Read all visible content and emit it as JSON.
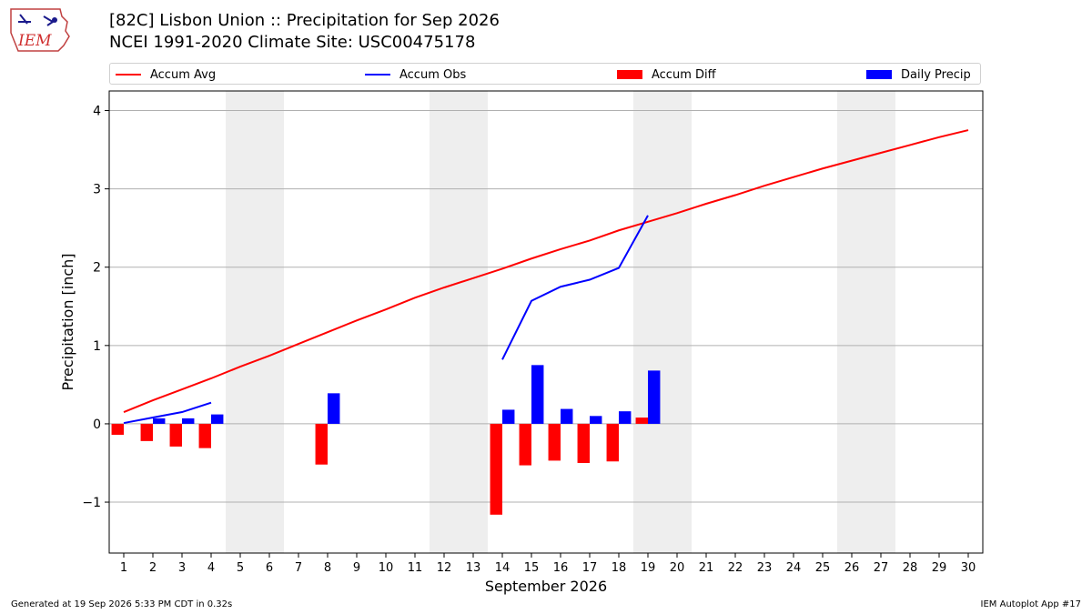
{
  "header": {
    "title_line1": "[82C] Lisbon Union :: Precipitation for Sep 2026",
    "title_line2": "NCEI 1991-2020 Climate Site: USC00475178",
    "logo_text": "IEM"
  },
  "footer": {
    "left": "Generated at 19 Sep 2026 5:33 PM CDT in 0.32s",
    "right": "IEM Autoplot App #17"
  },
  "colors": {
    "accum_avg": "#ff0000",
    "accum_obs": "#0000ff",
    "accum_diff": "#ff0000",
    "daily_precip": "#0000ff",
    "weekend_shade": "#eeeeee",
    "grid": "#b0b0b0"
  },
  "chart_data": {
    "type": "bar",
    "xlabel": "September 2026",
    "ylabel": "Precipitation [inch]",
    "xlim": [
      0.5,
      30.5
    ],
    "ylim": [
      -1.65,
      4.25
    ],
    "y_ticks": [
      -1,
      0,
      1,
      2,
      3,
      4
    ],
    "y_tick_labels": [
      "−1",
      "0",
      "1",
      "2",
      "3",
      "4"
    ],
    "x_ticks": [
      1,
      2,
      3,
      4,
      5,
      6,
      7,
      8,
      9,
      10,
      11,
      12,
      13,
      14,
      15,
      16,
      17,
      18,
      19,
      20,
      21,
      22,
      23,
      24,
      25,
      26,
      27,
      28,
      29,
      30
    ],
    "grid": "horizontal",
    "legend_placement": "top",
    "weekend_shading": [
      [
        4.5,
        6.5
      ],
      [
        11.5,
        13.5
      ],
      [
        18.5,
        20.5
      ],
      [
        25.5,
        27.5
      ]
    ],
    "legend": [
      {
        "key": "accum_avg",
        "label": "Accum Avg",
        "kind": "line"
      },
      {
        "key": "accum_obs",
        "label": "Accum Obs",
        "kind": "line"
      },
      {
        "key": "accum_diff",
        "label": "Accum Diff",
        "kind": "bar"
      },
      {
        "key": "daily_precip",
        "label": "Daily Precip",
        "kind": "bar"
      }
    ],
    "series": [
      {
        "name": "Accum Avg",
        "kind": "line",
        "x": [
          1,
          2,
          3,
          4,
          5,
          6,
          7,
          8,
          9,
          10,
          11,
          12,
          13,
          14,
          15,
          16,
          17,
          18,
          19,
          20,
          21,
          22,
          23,
          24,
          25,
          26,
          27,
          28,
          29,
          30
        ],
        "values": [
          0.15,
          0.3,
          0.44,
          0.58,
          0.73,
          0.87,
          1.02,
          1.17,
          1.32,
          1.46,
          1.61,
          1.74,
          1.86,
          1.98,
          2.11,
          2.23,
          2.34,
          2.47,
          2.58,
          2.69,
          2.81,
          2.92,
          3.04,
          3.15,
          3.26,
          3.36,
          3.46,
          3.56,
          3.66,
          3.75
        ]
      },
      {
        "name": "Accum Obs",
        "kind": "line",
        "segments": [
          {
            "x": [
              1,
              2,
              3,
              4
            ],
            "values": [
              0.01,
              0.08,
              0.15,
              0.27
            ]
          },
          {
            "x": [
              14,
              15,
              16,
              17,
              18,
              19
            ],
            "values": [
              0.82,
              1.57,
              1.75,
              1.84,
              1.99,
              2.66
            ]
          }
        ]
      },
      {
        "name": "Accum Diff",
        "kind": "bar",
        "x": [
          1,
          2,
          3,
          4,
          8,
          14,
          15,
          16,
          17,
          18,
          19
        ],
        "values": [
          -0.14,
          -0.22,
          -0.29,
          -0.31,
          -0.52,
          -1.16,
          -0.53,
          -0.47,
          -0.5,
          -0.48,
          0.08
        ]
      },
      {
        "name": "Daily Precip",
        "kind": "bar",
        "x": [
          2,
          3,
          4,
          8,
          14,
          15,
          16,
          17,
          18,
          19
        ],
        "values": [
          0.07,
          0.07,
          0.12,
          0.39,
          0.18,
          0.75,
          0.19,
          0.1,
          0.16,
          0.68
        ]
      }
    ]
  }
}
